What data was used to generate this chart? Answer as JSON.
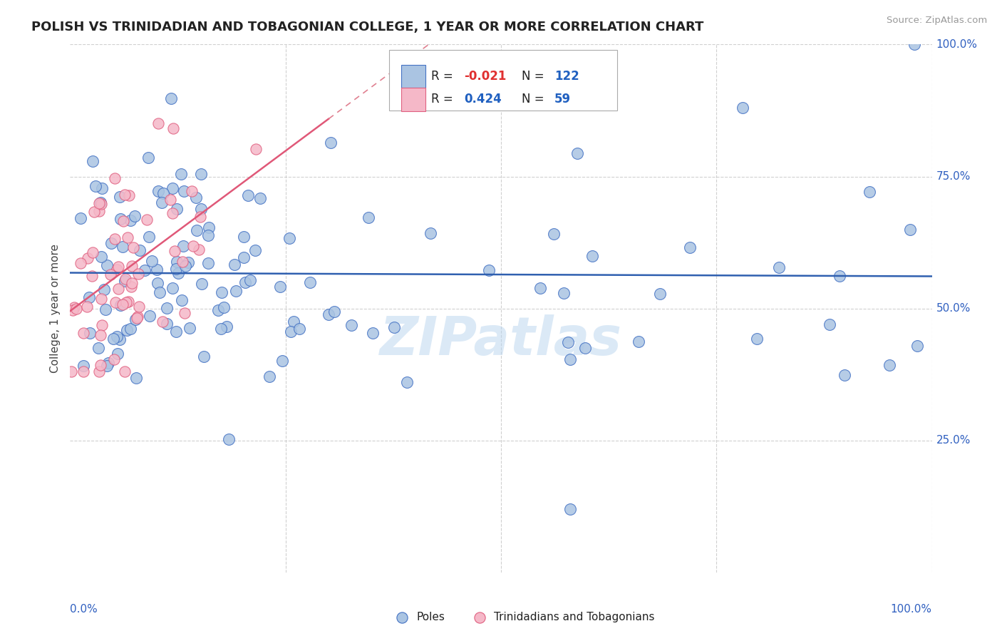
{
  "title": "POLISH VS TRINIDADIAN AND TOBAGONIAN COLLEGE, 1 YEAR OR MORE CORRELATION CHART",
  "source": "Source: ZipAtlas.com",
  "ylabel": "College, 1 year or more",
  "legend_labels": [
    "Poles",
    "Trinidadians and Tobagonians"
  ],
  "r_poles": "-0.021",
  "n_poles": "122",
  "r_tnt": "0.424",
  "n_tnt": "59",
  "color_poles_fill": "#aac4e2",
  "color_poles_edge": "#4472c4",
  "color_tnt_fill": "#f5b8c8",
  "color_tnt_edge": "#e06080",
  "color_tnt_line_solid": "#e05878",
  "color_tnt_line_dash": "#e08090",
  "color_poles_line": "#3060b0",
  "watermark": "ZIPatlas",
  "ytick_labels_right": [
    "25.0%",
    "50.0%",
    "75.0%",
    "100.0%"
  ],
  "ytick_vals_right": [
    0.25,
    0.5,
    0.75,
    1.0
  ],
  "xtick_labels": [
    "0.0%",
    "100.0%"
  ],
  "xtick_vals": [
    0.0,
    1.0
  ]
}
